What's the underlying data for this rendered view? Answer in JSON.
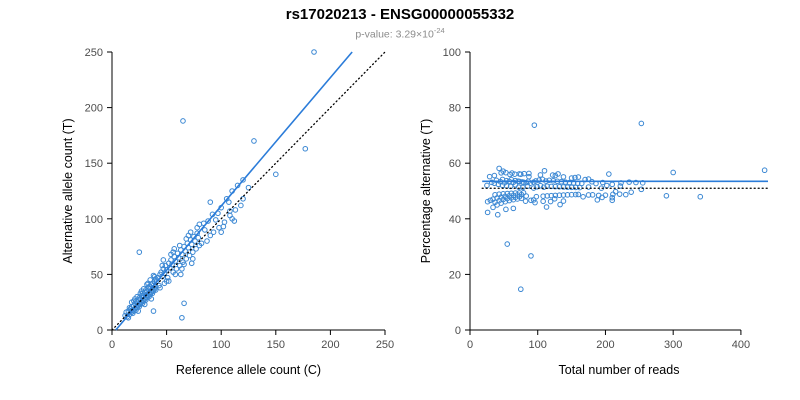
{
  "header": {
    "title": "rs17020213 - ENSG00000055332",
    "pvalue_prefix": "p-value: 3.29×10",
    "pvalue_exponent": "-24"
  },
  "colors": {
    "point": "#3a87d3",
    "line_blue": "#2b7cd9",
    "line_dotted": "#000000",
    "axis": "#000000",
    "tick_label": "#4d4d4d"
  },
  "chart_data": [
    {
      "id": "left",
      "type": "scatter",
      "xlabel": "Reference allele count (C)",
      "ylabel": "Alternative allele count (T)",
      "xlim": [
        0,
        250
      ],
      "ylim": [
        0,
        250
      ],
      "xticks": [
        0,
        50,
        100,
        150,
        200,
        250
      ],
      "yticks": [
        0,
        50,
        100,
        150,
        200,
        250
      ],
      "legend": "none",
      "grid": false,
      "lines": [
        {
          "style": "solid",
          "slope": 1.155,
          "intercept": -4
        },
        {
          "style": "dotted",
          "slope": 1,
          "intercept": 0
        }
      ]
    },
    {
      "id": "right",
      "type": "scatter",
      "xlabel": "Total number of reads",
      "ylabel": "Percentage alternative (T)",
      "xlim": [
        0,
        440
      ],
      "ylim": [
        0,
        100
      ],
      "xticks": [
        0,
        100,
        200,
        300,
        400
      ],
      "yticks": [
        0,
        20,
        40,
        60,
        80,
        100
      ],
      "legend": "none",
      "grid": false,
      "lines": [
        {
          "style": "solid",
          "y": 53.5,
          "x1": 18,
          "x2": 440
        },
        {
          "style": "dotted",
          "y": 51,
          "x1": 18,
          "x2": 440
        }
      ]
    }
  ],
  "points_ref_alt": [
    [
      12,
      13
    ],
    [
      14,
      12
    ],
    [
      15,
      17
    ],
    [
      16,
      14
    ],
    [
      17,
      19
    ],
    [
      18,
      16
    ],
    [
      18,
      21
    ],
    [
      19,
      18
    ],
    [
      20,
      22
    ],
    [
      20,
      17
    ],
    [
      21,
      24
    ],
    [
      21,
      19
    ],
    [
      22,
      21
    ],
    [
      22,
      26
    ],
    [
      23,
      20
    ],
    [
      23,
      25
    ],
    [
      24,
      27
    ],
    [
      24,
      22
    ],
    [
      25,
      24
    ],
    [
      25,
      29
    ],
    [
      26,
      23
    ],
    [
      26,
      28
    ],
    [
      27,
      31
    ],
    [
      27,
      25
    ],
    [
      28,
      27
    ],
    [
      28,
      33
    ],
    [
      29,
      26
    ],
    [
      29,
      31
    ],
    [
      30,
      34
    ],
    [
      30,
      28
    ],
    [
      31,
      30
    ],
    [
      31,
      36
    ],
    [
      32,
      29
    ],
    [
      32,
      35
    ],
    [
      33,
      38
    ],
    [
      33,
      31
    ],
    [
      34,
      33
    ],
    [
      34,
      39
    ],
    [
      35,
      32
    ],
    [
      35,
      37
    ],
    [
      36,
      41
    ],
    [
      36,
      34
    ],
    [
      37,
      36
    ],
    [
      37,
      42
    ],
    [
      38,
      35
    ],
    [
      38,
      40
    ],
    [
      39,
      44
    ],
    [
      39,
      37
    ],
    [
      40,
      39
    ],
    [
      40,
      46
    ],
    [
      13,
      16
    ],
    [
      16,
      20
    ],
    [
      19,
      15
    ],
    [
      22,
      18
    ],
    [
      25,
      21
    ],
    [
      28,
      24
    ],
    [
      31,
      27
    ],
    [
      34,
      30
    ],
    [
      37,
      33
    ],
    [
      40,
      36
    ],
    [
      15,
      11
    ],
    [
      18,
      25
    ],
    [
      21,
      28
    ],
    [
      24,
      17
    ],
    [
      27,
      35
    ],
    [
      30,
      23
    ],
    [
      33,
      42
    ],
    [
      36,
      28
    ],
    [
      39,
      48
    ],
    [
      20,
      26
    ],
    [
      23,
      30
    ],
    [
      26,
      33
    ],
    [
      29,
      37
    ],
    [
      32,
      41
    ],
    [
      35,
      45
    ],
    [
      38,
      49
    ],
    [
      41,
      44
    ],
    [
      42,
      47
    ],
    [
      43,
      40
    ],
    [
      44,
      50
    ],
    [
      45,
      52
    ],
    [
      46,
      48
    ],
    [
      47,
      55
    ],
    [
      48,
      51
    ],
    [
      49,
      58
    ],
    [
      50,
      54
    ],
    [
      51,
      47
    ],
    [
      52,
      60
    ],
    [
      53,
      56
    ],
    [
      54,
      63
    ],
    [
      55,
      59
    ],
    [
      56,
      52
    ],
    [
      57,
      66
    ],
    [
      58,
      62
    ],
    [
      59,
      55
    ],
    [
      60,
      69
    ],
    [
      61,
      65
    ],
    [
      62,
      58
    ],
    [
      63,
      72
    ],
    [
      64,
      68
    ],
    [
      65,
      61
    ],
    [
      66,
      75
    ],
    [
      67,
      71
    ],
    [
      68,
      64
    ],
    [
      69,
      78
    ],
    [
      70,
      74
    ],
    [
      71,
      67
    ],
    [
      72,
      81
    ],
    [
      73,
      77
    ],
    [
      74,
      70
    ],
    [
      75,
      84
    ],
    [
      76,
      80
    ],
    [
      77,
      73
    ],
    [
      78,
      87
    ],
    [
      79,
      83
    ],
    [
      80,
      76
    ],
    [
      46,
      58
    ],
    [
      50,
      44
    ],
    [
      54,
      68
    ],
    [
      58,
      50
    ],
    [
      62,
      76
    ],
    [
      66,
      59
    ],
    [
      70,
      85
    ],
    [
      74,
      64
    ],
    [
      78,
      92
    ],
    [
      48,
      42
    ],
    [
      56,
      70
    ],
    [
      64,
      55
    ],
    [
      72,
      88
    ],
    [
      80,
      95
    ],
    [
      44,
      38
    ],
    [
      47,
      63
    ],
    [
      52,
      44
    ],
    [
      57,
      73
    ],
    [
      63,
      50
    ],
    [
      68,
      82
    ],
    [
      73,
      60
    ],
    [
      82,
      78
    ],
    [
      84,
      96
    ],
    [
      87,
      80
    ],
    [
      93,
      88
    ],
    [
      97,
      105
    ],
    [
      102,
      93
    ],
    [
      107,
      115
    ],
    [
      112,
      98
    ],
    [
      85,
      90
    ],
    [
      88,
      98
    ],
    [
      90,
      85
    ],
    [
      92,
      104
    ],
    [
      95,
      99
    ],
    [
      98,
      92
    ],
    [
      100,
      110
    ],
    [
      103,
      97
    ],
    [
      105,
      118
    ],
    [
      108,
      103
    ],
    [
      110,
      125
    ],
    [
      113,
      108
    ],
    [
      115,
      130
    ],
    [
      118,
      112
    ],
    [
      120,
      135
    ],
    [
      90,
      115
    ],
    [
      100,
      88
    ],
    [
      110,
      100
    ],
    [
      120,
      118
    ],
    [
      125,
      128
    ],
    [
      65,
      188
    ],
    [
      185,
      250
    ],
    [
      64,
      11
    ],
    [
      66,
      24
    ],
    [
      38,
      17
    ],
    [
      25,
      70
    ],
    [
      130,
      170
    ],
    [
      177,
      163
    ],
    [
      150,
      140
    ],
    [
      108,
      107
    ]
  ]
}
